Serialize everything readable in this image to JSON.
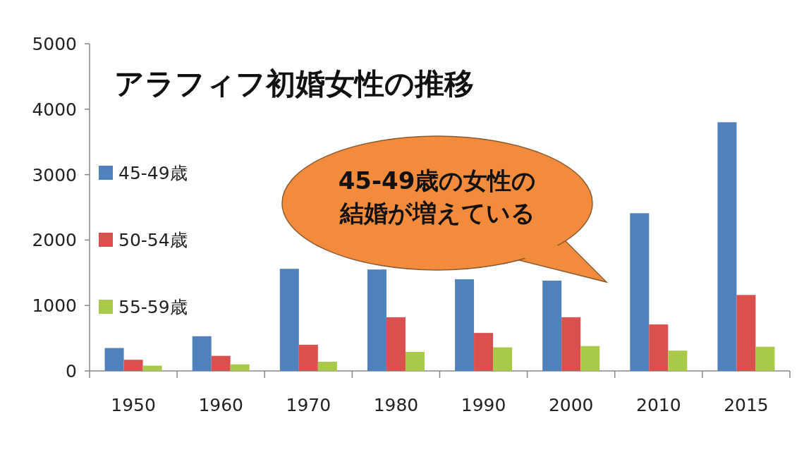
{
  "chart_data": {
    "type": "bar",
    "title": "アラフィフ初婚女性の推移",
    "categories": [
      "1950",
      "1960",
      "1970",
      "1980",
      "1990",
      "2000",
      "2010",
      "2015"
    ],
    "series": [
      {
        "name": "45-49歳",
        "color": "#4f81bd",
        "values": [
          350,
          530,
          1560,
          1550,
          1400,
          1380,
          2410,
          3800
        ]
      },
      {
        "name": "50-54歳",
        "color": "#d9504e",
        "values": [
          170,
          230,
          400,
          820,
          580,
          820,
          710,
          1160
        ]
      },
      {
        "name": "55-59歳",
        "color": "#a8c94a",
        "values": [
          80,
          100,
          140,
          290,
          360,
          380,
          310,
          370
        ]
      }
    ],
    "ylim": [
      0,
      5000
    ],
    "yticks": [
      0,
      1000,
      2000,
      3000,
      4000,
      5000
    ],
    "grid": false,
    "legend": "left",
    "annotations": [
      "45-49歳の女性の",
      "結婚が増えている"
    ]
  }
}
